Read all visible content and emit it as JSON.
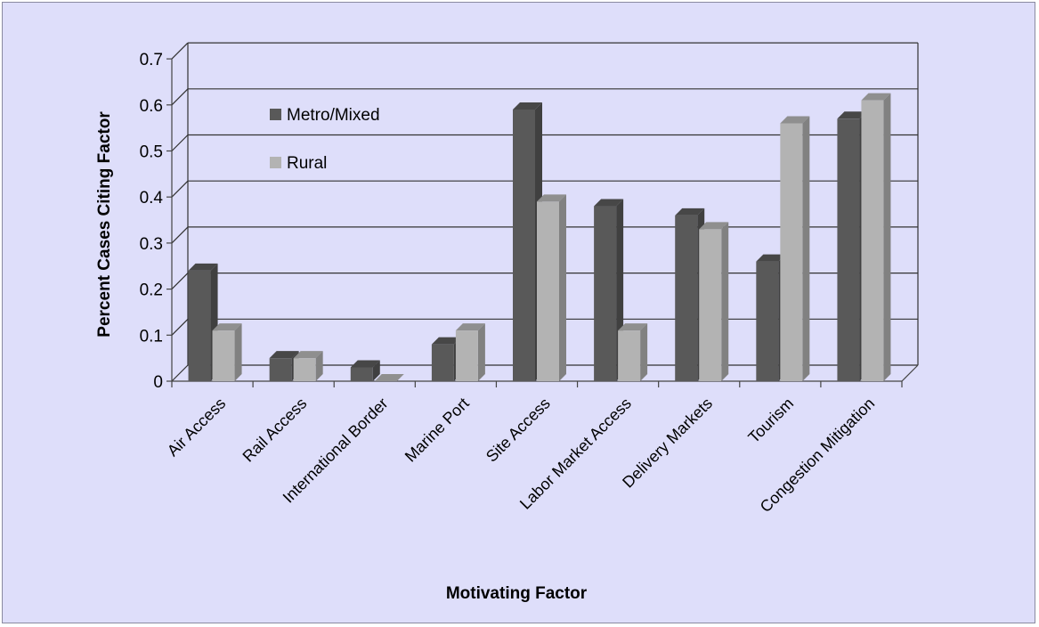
{
  "chart_data": {
    "type": "bar",
    "title": "",
    "xlabel": "Motivating Factor",
    "ylabel": "Percent Cases Citing Factor",
    "ylim": [
      0,
      0.7
    ],
    "yticks": [
      "0",
      "0.1",
      "0.2",
      "0.3",
      "0.4",
      "0.5",
      "0.6",
      "0.7"
    ],
    "grid": true,
    "legend_position": "top-left",
    "categories": [
      "Air Access",
      "Rail Access",
      "International Border",
      "Marine Port",
      "Site Access",
      "Labor Market Access",
      "Delivery Markets",
      "Tourism",
      "Congestion Mitigation"
    ],
    "series": [
      {
        "name": "Metro/Mixed",
        "color": "#595959",
        "values": [
          0.24,
          0.05,
          0.03,
          0.08,
          0.59,
          0.38,
          0.36,
          0.26,
          0.57
        ]
      },
      {
        "name": "Rural",
        "color": "#b3b3b3",
        "values": [
          0.11,
          0.05,
          0.0,
          0.11,
          0.39,
          0.11,
          0.33,
          0.56,
          0.61
        ]
      }
    ]
  }
}
